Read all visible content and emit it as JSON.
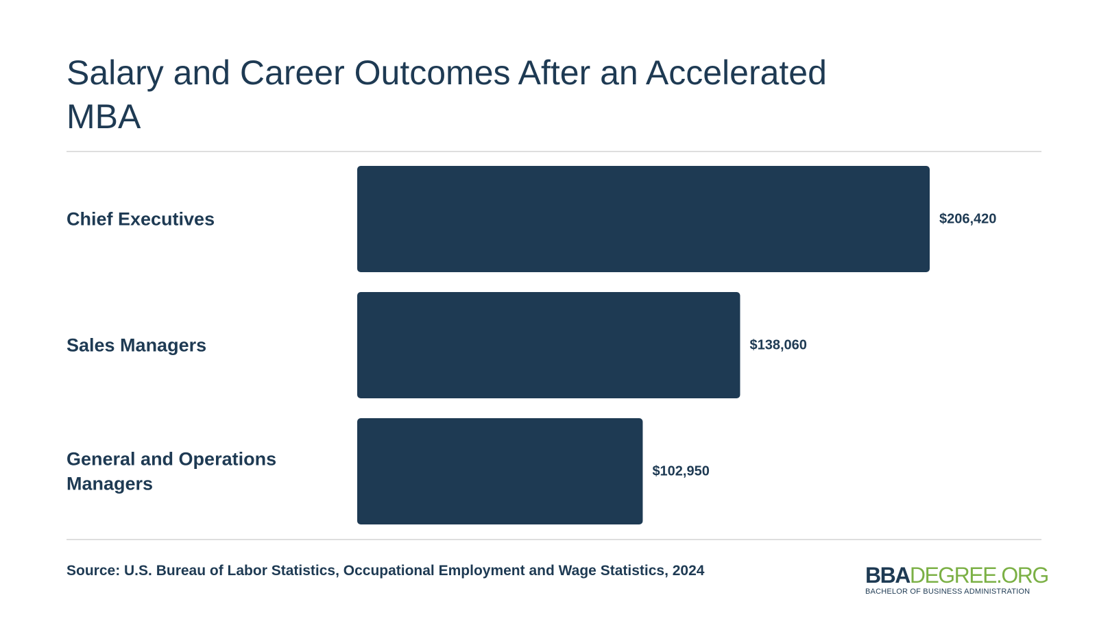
{
  "header": {
    "title": "Salary and Career Outcomes After an Accelerated MBA"
  },
  "chart_data": {
    "type": "bar",
    "orientation": "horizontal",
    "title": "Salary and Career Outcomes After an Accelerated MBA",
    "categories": [
      [
        "Chief Executives"
      ],
      [
        "Sales Managers"
      ],
      [
        "General and Operations",
        "Managers"
      ]
    ],
    "values": [
      206420,
      138060,
      102950
    ],
    "value_labels": [
      "$206,420",
      "$138,060",
      "$102,950"
    ],
    "xlim": [
      0,
      206420
    ],
    "grid": false,
    "bar_color": "#1e3a53"
  },
  "footer": {
    "source": "Source: U.S. Bureau of Labor Statistics, Occupational Employment and Wage Statistics, 2024",
    "logo_bold": "BBA",
    "logo_light": "DEGREE.ORG",
    "logo_tagline": "BACHELOR OF BUSINESS ADMINISTRATION"
  },
  "colors": {
    "primary": "#1e3a53",
    "accent": "#7bb045",
    "rule": "#dedede"
  }
}
